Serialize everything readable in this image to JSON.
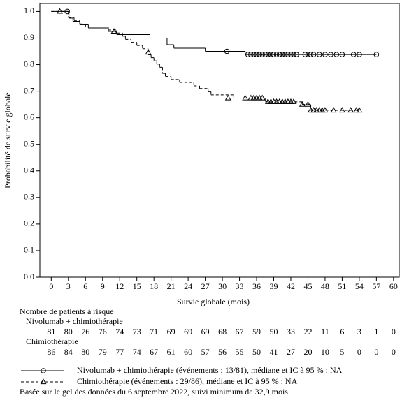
{
  "chart_data": {
    "type": "kaplan-meier",
    "x_label": "Survie globale (mois)",
    "y_label": "Probabilité de survie globale",
    "xlim": [
      -2,
      61
    ],
    "ylim": [
      0,
      1.03
    ],
    "xticks": [
      0,
      3,
      6,
      9,
      12,
      15,
      18,
      21,
      24,
      27,
      30,
      33,
      36,
      39,
      42,
      45,
      48,
      51,
      54,
      57,
      60
    ],
    "yticks": [
      {
        "value": 0,
        "label": "0.0"
      },
      0.1,
      0.2,
      0.3,
      0.4,
      0.5,
      0.6,
      0.7,
      0.8,
      0.9,
      {
        "value": 1,
        "label": "1.0"
      }
    ],
    "series": [
      {
        "name": "Nivolumab + chimiothérapie (événements : 13/81), médiane et IC à 95 % : NA",
        "color": "#000000",
        "dash": false,
        "marker": "circle",
        "x": [
          0,
          3.1,
          3.8,
          5,
          6.5,
          10,
          11.5,
          17.3,
          20.3,
          21.5,
          27,
          34,
          57
        ],
        "values": [
          1,
          0.975,
          0.963,
          0.95,
          0.938,
          0.925,
          0.913,
          0.9,
          0.875,
          0.862,
          0.85,
          0.838,
          0.838
        ],
        "censor_x": [
          2.8,
          30.8,
          34.5,
          35,
          35.5,
          36,
          36.5,
          37,
          37.5,
          38,
          38.5,
          39,
          39.5,
          40,
          40.5,
          41,
          41.5,
          42,
          42.5,
          43,
          44.5,
          45,
          45.5,
          46,
          47,
          48,
          49,
          50,
          51,
          53,
          54,
          57
        ],
        "censor_values": [
          1,
          0.85,
          0.838,
          0.838,
          0.838,
          0.838,
          0.838,
          0.838,
          0.838,
          0.838,
          0.838,
          0.838,
          0.838,
          0.838,
          0.838,
          0.838,
          0.838,
          0.838,
          0.838,
          0.838,
          0.838,
          0.838,
          0.838,
          0.838,
          0.838,
          0.838,
          0.838,
          0.838,
          0.838,
          0.838,
          0.838,
          0.838
        ]
      },
      {
        "name": "Chimiothérapie (événements : 29/86), médiane et IC à 95 % : NA",
        "color": "#000000",
        "dash": true,
        "marker": "triangle",
        "x": [
          0,
          3,
          4,
          5,
          6,
          10,
          11.5,
          12.5,
          13,
          14,
          15,
          16,
          17,
          17.5,
          18,
          18.5,
          19,
          19.5,
          20,
          21,
          22.5,
          25,
          26,
          27.5,
          28,
          32,
          37.5,
          44,
          45.5,
          54
        ],
        "values": [
          1,
          0.977,
          0.965,
          0.953,
          0.942,
          0.93,
          0.919,
          0.907,
          0.895,
          0.884,
          0.872,
          0.86,
          0.837,
          0.826,
          0.814,
          0.802,
          0.79,
          0.767,
          0.755,
          0.744,
          0.733,
          0.72,
          0.71,
          0.698,
          0.686,
          0.674,
          0.66,
          0.65,
          0.628,
          0.628
        ],
        "censor_x": [
          1.5,
          11,
          17,
          31,
          34,
          35,
          35.5,
          36,
          36.5,
          37,
          38,
          38.5,
          39,
          39.5,
          40,
          40.5,
          41,
          41.5,
          42,
          42.5,
          44,
          45,
          45.5,
          46,
          46.5,
          47,
          47.5,
          48,
          49.5,
          51,
          52.5,
          53.5,
          54
        ],
        "censor_values": [
          1,
          0.925,
          0.846,
          0.674,
          0.674,
          0.674,
          0.674,
          0.674,
          0.674,
          0.674,
          0.66,
          0.66,
          0.66,
          0.66,
          0.66,
          0.66,
          0.66,
          0.66,
          0.66,
          0.66,
          0.65,
          0.65,
          0.628,
          0.628,
          0.628,
          0.628,
          0.628,
          0.628,
          0.628,
          0.628,
          0.628,
          0.628,
          0.628
        ]
      }
    ],
    "risk_table": {
      "title": "Nombre de patients à risque",
      "groups": [
        {
          "name": "Nivolumab + chimiothérapie",
          "counts": [
            81,
            80,
            76,
            76,
            74,
            73,
            71,
            69,
            69,
            69,
            68,
            67,
            59,
            50,
            33,
            22,
            11,
            6,
            3,
            1,
            0
          ]
        },
        {
          "name": "Chimiothérapie",
          "counts": [
            86,
            84,
            80,
            79,
            77,
            74,
            67,
            61,
            60,
            57,
            56,
            55,
            50,
            41,
            27,
            20,
            10,
            5,
            0,
            0,
            0
          ]
        }
      ]
    },
    "footnote": "Basée sur le gel des données du 6 septembre 2022, suivi minimum de 32,9 mois"
  }
}
